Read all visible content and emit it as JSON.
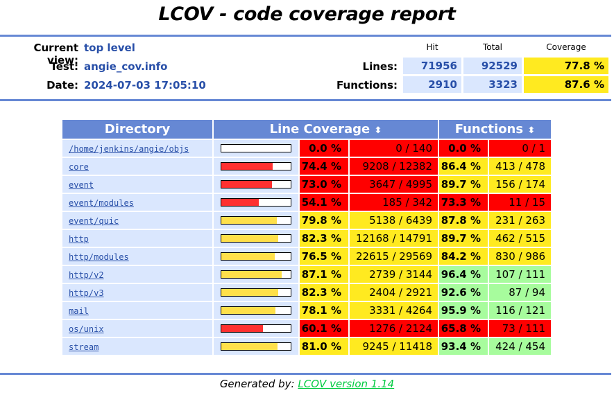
{
  "title": "LCOV - code coverage report",
  "header": {
    "current_view_label": "Current view:",
    "current_view_value": "top level",
    "test_label": "Test:",
    "test_value": "angie_cov.info",
    "date_label": "Date:",
    "date_value": "2024-07-03 17:05:10",
    "col_hit": "Hit",
    "col_total": "Total",
    "col_coverage": "Coverage",
    "lines_label": "Lines:",
    "lines_hit": "71956",
    "lines_total": "92529",
    "lines_coverage": "77.8 %",
    "functions_label": "Functions:",
    "functions_hit": "2910",
    "functions_total": "3323",
    "functions_coverage": "87.6 %"
  },
  "table": {
    "col_directory": "Directory",
    "col_line_coverage": "Line Coverage",
    "col_functions": "Functions",
    "sort_icon": "⬍",
    "colors": {
      "lo": "#ff0000",
      "med": "#ffea20",
      "hi": "#a7fc9d",
      "bar_lo": "#ff3030",
      "bar_med": "#ffe04a"
    },
    "rows": [
      {
        "dir": "/home/jenkins/angie/objs",
        "line_pct": 0.0,
        "line_pct_text": "0.0 %",
        "line_frac": "0 / 140",
        "line_level": "lo",
        "fn_pct_text": "0.0 %",
        "fn_frac": "0 / 1",
        "fn_level": "lo"
      },
      {
        "dir": "core",
        "line_pct": 74.4,
        "line_pct_text": "74.4 %",
        "line_frac": "9208 / 12382",
        "line_level": "lo",
        "fn_pct_text": "86.4 %",
        "fn_frac": "413 / 478",
        "fn_level": "med"
      },
      {
        "dir": "event",
        "line_pct": 73.0,
        "line_pct_text": "73.0 %",
        "line_frac": "3647 / 4995",
        "line_level": "lo",
        "fn_pct_text": "89.7 %",
        "fn_frac": "156 / 174",
        "fn_level": "med"
      },
      {
        "dir": "event/modules",
        "line_pct": 54.1,
        "line_pct_text": "54.1 %",
        "line_frac": "185 / 342",
        "line_level": "lo",
        "fn_pct_text": "73.3 %",
        "fn_frac": "11 / 15",
        "fn_level": "lo"
      },
      {
        "dir": "event/quic",
        "line_pct": 79.8,
        "line_pct_text": "79.8 %",
        "line_frac": "5138 / 6439",
        "line_level": "med",
        "fn_pct_text": "87.8 %",
        "fn_frac": "231 / 263",
        "fn_level": "med"
      },
      {
        "dir": "http",
        "line_pct": 82.3,
        "line_pct_text": "82.3 %",
        "line_frac": "12168 / 14791",
        "line_level": "med",
        "fn_pct_text": "89.7 %",
        "fn_frac": "462 / 515",
        "fn_level": "med"
      },
      {
        "dir": "http/modules",
        "line_pct": 76.5,
        "line_pct_text": "76.5 %",
        "line_frac": "22615 / 29569",
        "line_level": "med",
        "fn_pct_text": "84.2 %",
        "fn_frac": "830 / 986",
        "fn_level": "med"
      },
      {
        "dir": "http/v2",
        "line_pct": 87.1,
        "line_pct_text": "87.1 %",
        "line_frac": "2739 / 3144",
        "line_level": "med",
        "fn_pct_text": "96.4 %",
        "fn_frac": "107 / 111",
        "fn_level": "hi"
      },
      {
        "dir": "http/v3",
        "line_pct": 82.3,
        "line_pct_text": "82.3 %",
        "line_frac": "2404 / 2921",
        "line_level": "med",
        "fn_pct_text": "92.6 %",
        "fn_frac": "87 / 94",
        "fn_level": "hi"
      },
      {
        "dir": "mail",
        "line_pct": 78.1,
        "line_pct_text": "78.1 %",
        "line_frac": "3331 / 4264",
        "line_level": "med",
        "fn_pct_text": "95.9 %",
        "fn_frac": "116 / 121",
        "fn_level": "hi"
      },
      {
        "dir": "os/unix",
        "line_pct": 60.1,
        "line_pct_text": "60.1 %",
        "line_frac": "1276 / 2124",
        "line_level": "lo",
        "fn_pct_text": "65.8 %",
        "fn_frac": "73 / 111",
        "fn_level": "lo"
      },
      {
        "dir": "stream",
        "line_pct": 81.0,
        "line_pct_text": "81.0 %",
        "line_frac": "9245 / 11418",
        "line_level": "med",
        "fn_pct_text": "93.4 %",
        "fn_frac": "424 / 454",
        "fn_level": "hi"
      }
    ]
  },
  "footer": {
    "generated_by": "Generated by:",
    "link_text": "LCOV version 1.14"
  }
}
